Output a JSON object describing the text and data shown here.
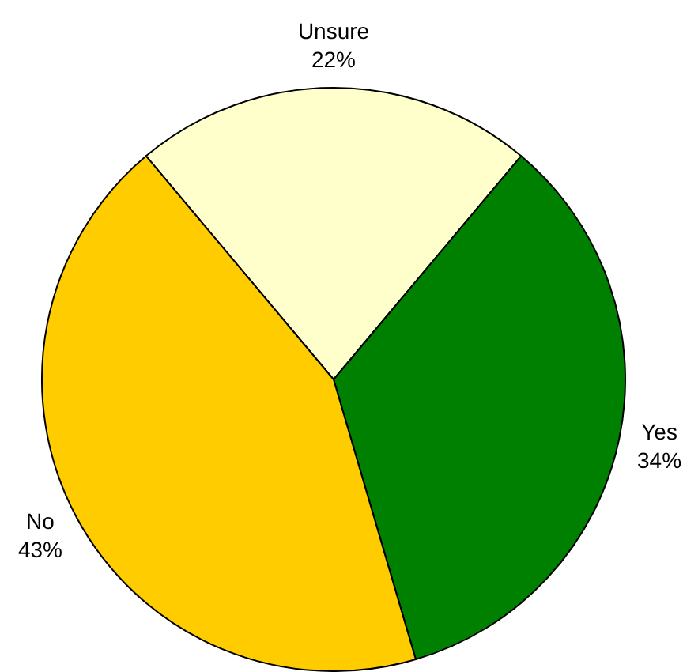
{
  "chart_data": {
    "type": "pie",
    "categories": [
      "Unsure",
      "Yes",
      "No"
    ],
    "values": [
      22,
      34,
      43
    ],
    "colors": [
      "#ffffcc",
      "#008000",
      "#ffcc00"
    ],
    "value_labels": [
      "22%",
      "34%",
      "43%"
    ],
    "legend": false
  }
}
